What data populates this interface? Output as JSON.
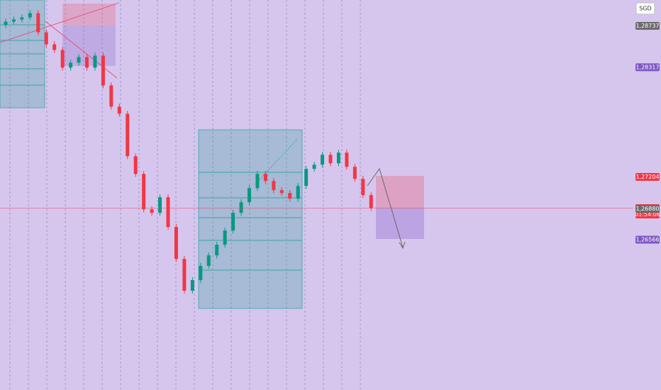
{
  "chart_data": {
    "type": "candlestick",
    "currency": "SGD",
    "countdown": "01:54:06",
    "ylim": [
      1.2504,
      1.29
    ],
    "open": [
      1.28744,
      1.2878,
      1.28802,
      1.28823,
      1.28866,
      1.28672,
      1.2855,
      1.28493,
      1.28313,
      1.28363,
      1.28421,
      1.28313,
      1.28435,
      1.28133,
      1.27917,
      1.27845,
      1.27414,
      1.27234,
      1.26875,
      1.26839,
      1.26997,
      1.26695,
      1.26371,
      1.26048,
      1.26156,
      1.263,
      1.26407,
      1.26515,
      1.26659,
      1.26839,
      1.26947,
      1.2709,
      1.27234,
      1.27162,
      1.27069,
      1.2704,
      1.26983,
      1.27112,
      1.27285,
      1.27328,
      1.27428,
      1.27342,
      1.2745,
      1.27306,
      1.27184,
      1.27019
    ],
    "high": [
      1.2881,
      1.28832,
      1.28853,
      1.28896,
      1.28896,
      1.28702,
      1.2858,
      1.28523,
      1.28393,
      1.28451,
      1.28451,
      1.28465,
      1.28465,
      1.28163,
      1.27947,
      1.27875,
      1.27444,
      1.27264,
      1.26905,
      1.27027,
      1.27027,
      1.26725,
      1.26401,
      1.26186,
      1.2633,
      1.26437,
      1.26545,
      1.26689,
      1.26869,
      1.26977,
      1.2712,
      1.27264,
      1.27264,
      1.27192,
      1.27099,
      1.2707,
      1.27142,
      1.27315,
      1.27358,
      1.27458,
      1.27458,
      1.2748,
      1.2748,
      1.27336,
      1.27214,
      1.27049
    ],
    "low": [
      1.28714,
      1.2875,
      1.28772,
      1.28793,
      1.28642,
      1.2852,
      1.28463,
      1.28283,
      1.28283,
      1.28333,
      1.28283,
      1.28283,
      1.28103,
      1.27887,
      1.27815,
      1.27384,
      1.27204,
      1.26845,
      1.26809,
      1.26809,
      1.26665,
      1.26341,
      1.26018,
      1.26018,
      1.26126,
      1.2627,
      1.26377,
      1.26485,
      1.26629,
      1.26809,
      1.26917,
      1.2706,
      1.27132,
      1.27039,
      1.2701,
      1.26953,
      1.26953,
      1.27082,
      1.27255,
      1.27298,
      1.27312,
      1.27312,
      1.27276,
      1.27154,
      1.26989,
      1.26857
    ],
    "close": [
      1.2878,
      1.28802,
      1.28823,
      1.28866,
      1.28672,
      1.2855,
      1.28493,
      1.28313,
      1.28363,
      1.28421,
      1.28313,
      1.28435,
      1.28133,
      1.27917,
      1.27845,
      1.27414,
      1.27234,
      1.26875,
      1.26839,
      1.26997,
      1.26695,
      1.26371,
      1.26048,
      1.26156,
      1.263,
      1.26407,
      1.26515,
      1.26659,
      1.26839,
      1.26947,
      1.2709,
      1.27234,
      1.27162,
      1.27069,
      1.2704,
      1.26983,
      1.27112,
      1.27285,
      1.27328,
      1.27428,
      1.27342,
      1.2745,
      1.27306,
      1.27184,
      1.27019,
      1.26887
    ],
    "up_color": "#089981",
    "down_color": "#f23645",
    "price_labels": [
      {
        "value": 1.28737,
        "label": "1,28737",
        "color": "#6b6b6b"
      },
      {
        "value": 1.28317,
        "label": "1,28317",
        "color": "#7e57c2"
      },
      {
        "value": 1.27204,
        "label": "1,27204",
        "color": "#f23645"
      },
      {
        "value": 1.26887,
        "label": "1,26887",
        "color": "#f23645"
      },
      {
        "value": 1.2688,
        "label": "1,26880",
        "color": "#6b6b6b"
      },
      {
        "value": 1.26566,
        "label": "1,26566",
        "color": "#7e57c2"
      }
    ]
  }
}
